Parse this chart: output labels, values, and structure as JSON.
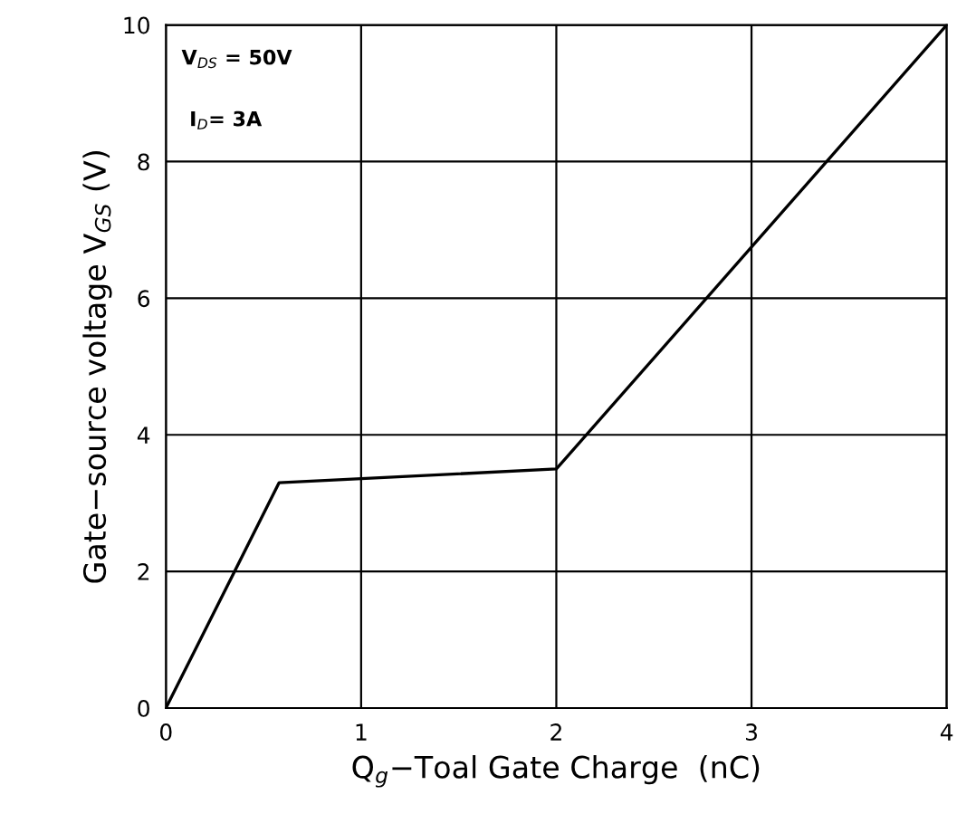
{
  "chart_data": {
    "type": "line",
    "xlabel": "Q$_{g}$−Toal Gate Charge  (nC)",
    "ylabel": "Gate−source voltage V$_{GS}$ (V)",
    "x": [
      0,
      0.58,
      2,
      4
    ],
    "series": [
      {
        "color": "#000000",
        "values": [
          0,
          3.3,
          3.5,
          10
        ]
      }
    ],
    "xlim": [
      0,
      4
    ],
    "ylim": [
      0,
      10
    ],
    "xticks": [
      0,
      1,
      2,
      3,
      4
    ],
    "yticks": [
      0,
      2,
      4,
      6,
      8,
      10
    ],
    "grid": true,
    "annotations": [
      "V$_{DS}$ = 50V",
      "I$_{D}$= 3A"
    ]
  }
}
